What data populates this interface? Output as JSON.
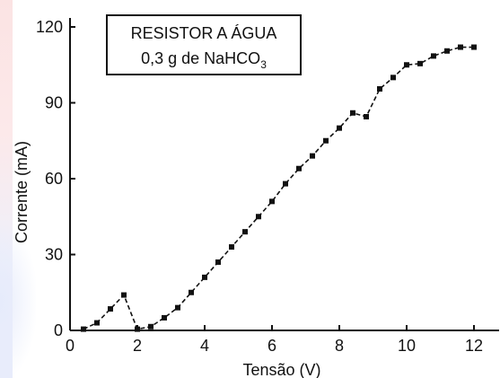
{
  "chart_data": {
    "type": "line",
    "title": "",
    "annotation": {
      "line1": "RESISTOR A ÁGUA",
      "line2_prefix": "0,3 g de NaHCO",
      "line2_subscript": "3"
    },
    "xlabel": "Tensão (V)",
    "ylabel": "Corrente (mA)",
    "xlim": [
      0,
      12.8
    ],
    "ylim": [
      0,
      125
    ],
    "xticks": [
      0,
      2,
      4,
      6,
      8,
      10,
      12
    ],
    "yticks": [
      0,
      30,
      60,
      90,
      120
    ],
    "xtick_labels": [
      "0",
      "2",
      "4",
      "6",
      "8",
      "10",
      "12"
    ],
    "ytick_labels": [
      "0",
      "30",
      "60",
      "90",
      "120"
    ],
    "grid": false,
    "series": [
      {
        "marker": "square",
        "line_style": "dashed",
        "color": "#111111",
        "x": [
          0.4,
          0.8,
          1.2,
          1.6,
          2.0,
          2.4,
          2.8,
          3.2,
          3.6,
          4.0,
          4.4,
          4.8,
          5.2,
          5.6,
          6.0,
          6.4,
          6.8,
          7.2,
          7.6,
          8.0,
          8.4,
          8.8,
          9.2,
          9.6,
          10.0,
          10.4,
          10.8,
          11.2,
          11.6,
          12.0
        ],
        "y": [
          0.5,
          3,
          8.5,
          14,
          0.5,
          1.5,
          5,
          9,
          15,
          21,
          27,
          33,
          39,
          45,
          51,
          58,
          64,
          69,
          75,
          80,
          86,
          84.5,
          95.5,
          100,
          105,
          105.5,
          108.5,
          110.5,
          112,
          112
        ]
      }
    ]
  }
}
